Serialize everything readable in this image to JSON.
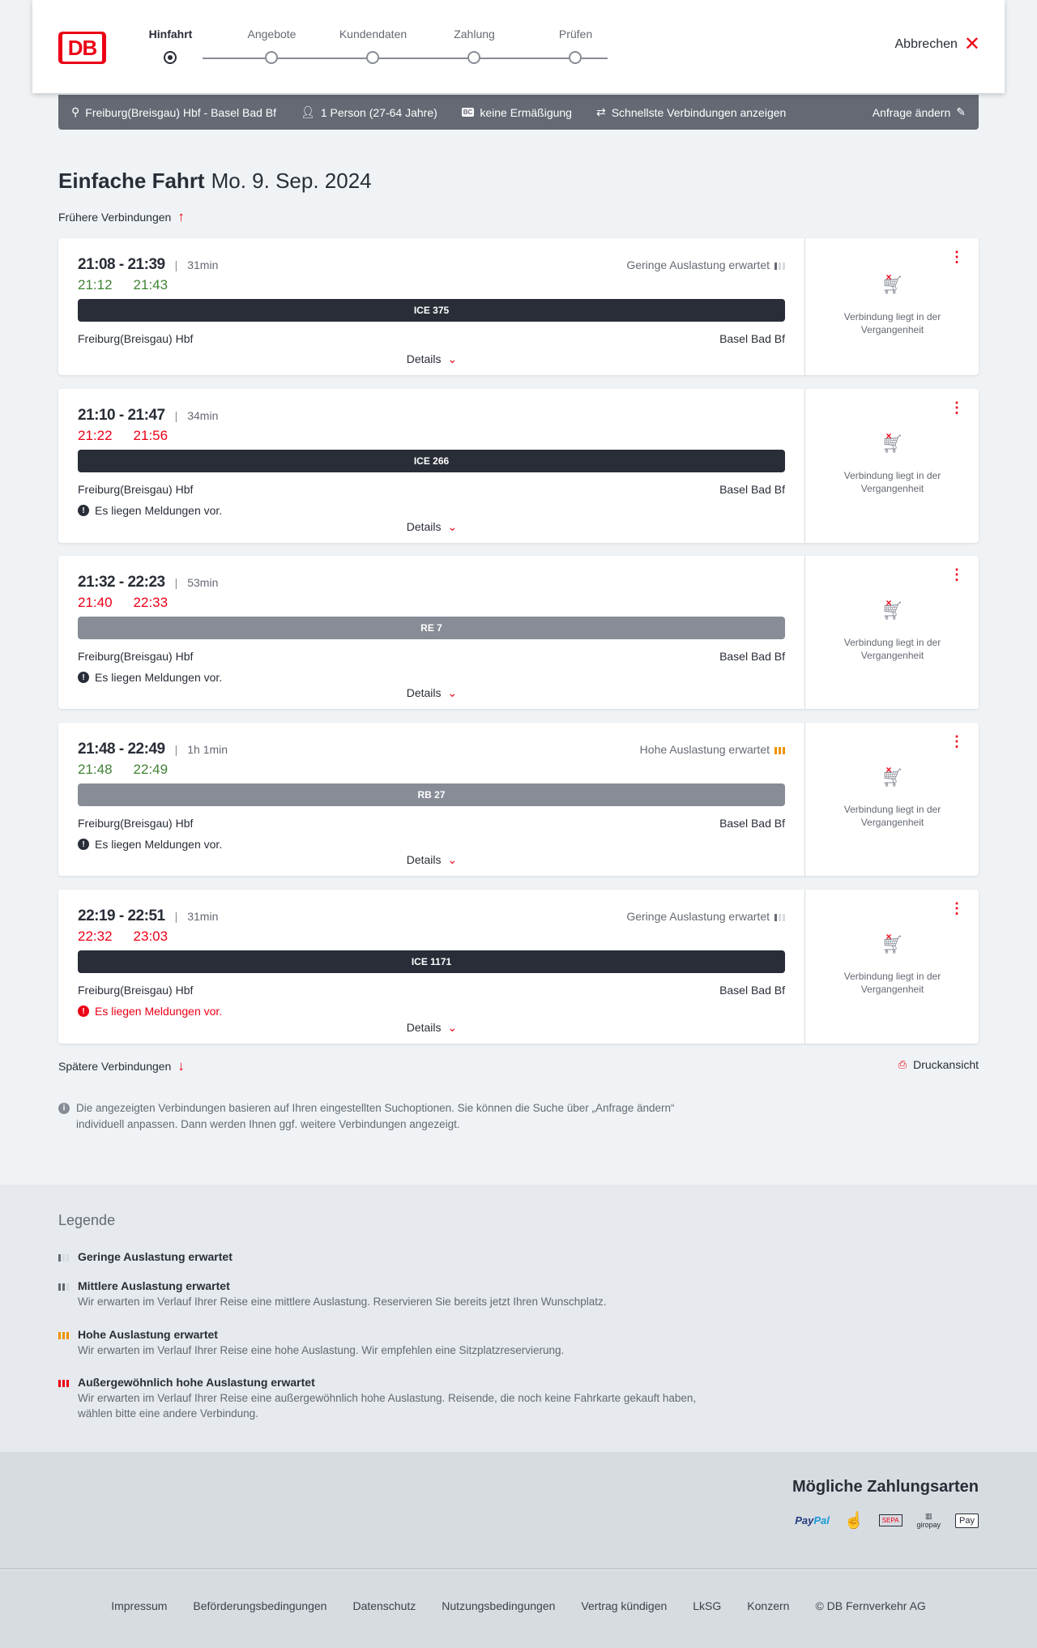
{
  "header": {
    "logo": "DB",
    "steps": [
      "Hinfahrt",
      "Angebote",
      "Kundendaten",
      "Zahlung",
      "Prüfen"
    ],
    "active_step": 0,
    "cancel": "Abbrechen"
  },
  "summary": {
    "route": "Freiburg(Breisgau) Hbf - Basel Bad Bf",
    "passengers": "1 Person (27-64 Jahre)",
    "discount": "keine Ermäßigung",
    "fastest": "Schnellste Verbindungen anzeigen",
    "edit": "Anfrage ändern"
  },
  "title": {
    "type": "Einfache Fahrt",
    "date": "Mo. 9. Sep. 2024"
  },
  "earlier": "Frühere Verbindungen",
  "later": "Spätere Verbindungen",
  "print": "Druckansicht",
  "details_label": "Details",
  "past_label": "Verbindung liegt in der Vergangenheit",
  "connections": [
    {
      "times": "21:08 - 21:39",
      "duration": "31min",
      "occupancy": "Geringe Auslastung erwartet",
      "real_dep": "21:12",
      "real_arr": "21:43",
      "real_status": "ok",
      "train": "ICE 375",
      "train_color": "#282d37",
      "from": "Freiburg(Breisgau) Hbf",
      "to": "Basel Bad Bf",
      "message": ""
    },
    {
      "times": "21:10 - 21:47",
      "duration": "34min",
      "occupancy": "",
      "real_dep": "21:22",
      "real_arr": "21:56",
      "real_status": "late",
      "train": "ICE 266",
      "train_color": "#282d37",
      "from": "Freiburg(Breisgau) Hbf",
      "to": "Basel Bad Bf",
      "message": "Es liegen Meldungen vor."
    },
    {
      "times": "21:32 - 22:23",
      "duration": "53min",
      "occupancy": "",
      "real_dep": "21:40",
      "real_arr": "22:33",
      "real_status": "late",
      "train": "RE 7",
      "train_color": "#878c96",
      "from": "Freiburg(Breisgau) Hbf",
      "to": "Basel Bad Bf",
      "message": "Es liegen Meldungen vor."
    },
    {
      "times": "21:48 - 22:49",
      "duration": "1h 1min",
      "occupancy": "Hohe Auslastung erwartet",
      "real_dep": "21:48",
      "real_arr": "22:49",
      "real_status": "ok",
      "train": "RB 27",
      "train_color": "#878c96",
      "from": "Freiburg(Breisgau) Hbf",
      "to": "Basel Bad Bf",
      "message": "Es liegen Meldungen vor."
    },
    {
      "times": "22:19 - 22:51",
      "duration": "31min",
      "occupancy": "Geringe Auslastung erwartet",
      "real_dep": "22:32",
      "real_arr": "23:03",
      "real_status": "late",
      "train": "ICE 1171",
      "train_color": "#282d37",
      "from": "Freiburg(Breisgau) Hbf",
      "to": "Basel Bad Bf",
      "message": "Es liegen Meldungen vor.",
      "message_red": true
    }
  ],
  "info": "Die angezeigten Verbindungen basieren auf Ihren eingestellten Suchoptionen. Sie können die Suche über „Anfrage ändern“ individuell anpassen. Dann werden Ihnen ggf. weitere Verbindungen angezeigt.",
  "legend": {
    "title": "Legende",
    "items": [
      {
        "title": "Geringe Auslastung erwartet",
        "text": ""
      },
      {
        "title": "Mittlere Auslastung erwartet",
        "text": "Wir erwarten im Verlauf Ihrer Reise eine mittlere Auslastung. Reservieren Sie bereits jetzt Ihren Wunschplatz."
      },
      {
        "title": "Hohe Auslastung erwartet",
        "text": "Wir erwarten im Verlauf Ihrer Reise eine hohe Auslastung. Wir empfehlen eine Sitzplatzreservierung."
      },
      {
        "title": "Außergewöhnlich hohe Auslastung erwartet",
        "text": "Wir erwarten im Verlauf Ihrer Reise eine außergewöhnlich hohe Auslastung. Reisende, die noch keine Fahrkarte gekauft haben, wählen bitte eine andere Verbindung."
      }
    ]
  },
  "payment": {
    "title": "Mögliche Zahlungsarten",
    "methods": [
      "PayPal",
      "Kreditkarte",
      "SEPA",
      "giropay",
      "Apple Pay"
    ]
  },
  "footer": [
    "Impressum",
    "Beförderungsbedingungen",
    "Datenschutz",
    "Nutzungsbedingungen",
    "Vertrag kündigen",
    "LkSG",
    "Konzern",
    "© DB Fernverkehr AG"
  ],
  "colors": {
    "brand": "#ec0016",
    "on_time": "#408335",
    "delay": "#ec0016",
    "high_occupancy": "#f39200"
  }
}
